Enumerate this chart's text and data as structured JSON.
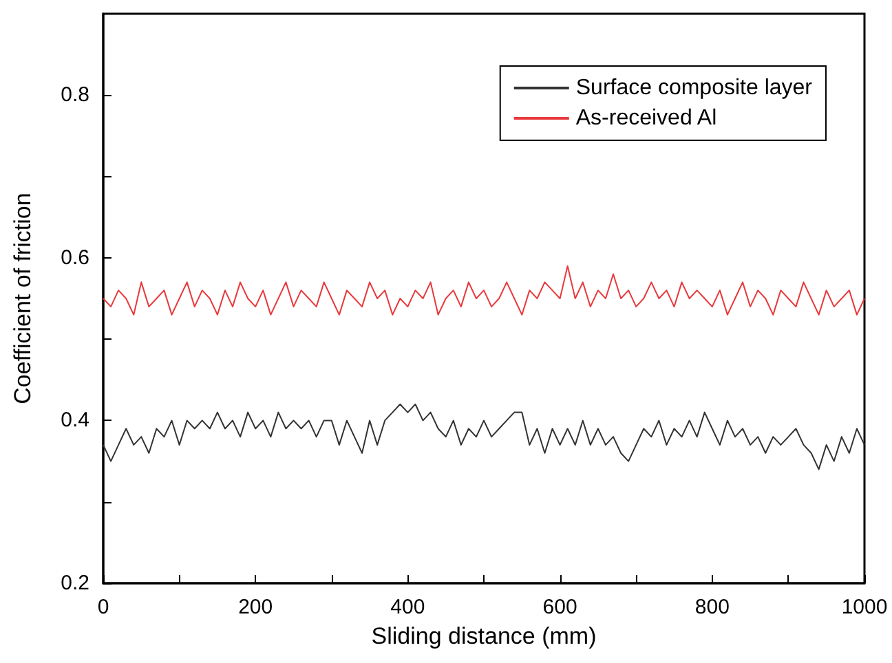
{
  "chart_data": {
    "type": "line",
    "xlabel": "Sliding distance (mm)",
    "ylabel": "Coefficient of friction",
    "x": [
      0,
      10,
      20,
      30,
      40,
      50,
      60,
      70,
      80,
      90,
      100,
      110,
      120,
      130,
      140,
      150,
      160,
      170,
      180,
      190,
      200,
      210,
      220,
      230,
      240,
      250,
      260,
      270,
      280,
      290,
      300,
      310,
      320,
      330,
      340,
      350,
      360,
      370,
      380,
      390,
      400,
      410,
      420,
      430,
      440,
      450,
      460,
      470,
      480,
      490,
      500,
      510,
      520,
      530,
      540,
      550,
      560,
      570,
      580,
      590,
      600,
      610,
      620,
      630,
      640,
      650,
      660,
      670,
      680,
      690,
      700,
      710,
      720,
      730,
      740,
      750,
      760,
      770,
      780,
      790,
      800,
      810,
      820,
      830,
      840,
      850,
      860,
      870,
      880,
      890,
      900,
      910,
      920,
      930,
      940,
      950,
      960,
      970,
      980,
      990,
      1000
    ],
    "series": [
      {
        "name": "Surface composite layer",
        "color": "#333333",
        "values": [
          0.37,
          0.35,
          0.37,
          0.39,
          0.37,
          0.38,
          0.36,
          0.39,
          0.38,
          0.4,
          0.37,
          0.4,
          0.39,
          0.4,
          0.39,
          0.41,
          0.39,
          0.4,
          0.38,
          0.41,
          0.39,
          0.4,
          0.38,
          0.41,
          0.39,
          0.4,
          0.39,
          0.4,
          0.38,
          0.4,
          0.4,
          0.37,
          0.4,
          0.38,
          0.36,
          0.4,
          0.37,
          0.4,
          0.41,
          0.42,
          0.41,
          0.42,
          0.4,
          0.41,
          0.39,
          0.38,
          0.4,
          0.37,
          0.39,
          0.38,
          0.4,
          0.38,
          0.39,
          0.4,
          0.41,
          0.41,
          0.37,
          0.39,
          0.36,
          0.39,
          0.37,
          0.39,
          0.37,
          0.4,
          0.37,
          0.39,
          0.37,
          0.38,
          0.36,
          0.35,
          0.37,
          0.39,
          0.38,
          0.4,
          0.37,
          0.39,
          0.38,
          0.4,
          0.38,
          0.41,
          0.39,
          0.37,
          0.4,
          0.38,
          0.39,
          0.37,
          0.38,
          0.36,
          0.38,
          0.37,
          0.38,
          0.39,
          0.37,
          0.36,
          0.34,
          0.37,
          0.35,
          0.38,
          0.36,
          0.39,
          0.37
        ]
      },
      {
        "name": "As-received Al",
        "color": "#e8393c",
        "values": [
          0.55,
          0.54,
          0.56,
          0.55,
          0.53,
          0.57,
          0.54,
          0.55,
          0.56,
          0.53,
          0.55,
          0.57,
          0.54,
          0.56,
          0.55,
          0.53,
          0.56,
          0.54,
          0.57,
          0.55,
          0.54,
          0.56,
          0.53,
          0.55,
          0.57,
          0.54,
          0.56,
          0.55,
          0.54,
          0.57,
          0.55,
          0.53,
          0.56,
          0.55,
          0.54,
          0.57,
          0.55,
          0.56,
          0.53,
          0.55,
          0.54,
          0.56,
          0.55,
          0.57,
          0.53,
          0.55,
          0.56,
          0.54,
          0.57,
          0.55,
          0.56,
          0.54,
          0.55,
          0.57,
          0.55,
          0.53,
          0.56,
          0.55,
          0.57,
          0.56,
          0.55,
          0.59,
          0.55,
          0.57,
          0.54,
          0.56,
          0.55,
          0.58,
          0.55,
          0.56,
          0.54,
          0.55,
          0.57,
          0.55,
          0.56,
          0.54,
          0.57,
          0.55,
          0.56,
          0.55,
          0.54,
          0.56,
          0.53,
          0.55,
          0.57,
          0.54,
          0.56,
          0.55,
          0.53,
          0.56,
          0.55,
          0.54,
          0.57,
          0.55,
          0.53,
          0.56,
          0.54,
          0.55,
          0.56,
          0.53,
          0.55
        ]
      }
    ],
    "xlim": [
      0,
      1000
    ],
    "xticks": [
      0,
      {
        "value": 100,
        "label": null
      },
      200,
      {
        "value": 300,
        "label": null
      },
      400,
      {
        "value": 500,
        "label": null
      },
      600,
      {
        "value": 700,
        "label": null
      },
      800,
      {
        "value": 900,
        "label": null
      },
      1000
    ],
    "ylim": [
      0.2,
      0.9
    ],
    "yticks": [
      0.2,
      {
        "value": 0.3,
        "label": null
      },
      0.4,
      {
        "value": 0.5,
        "label": null
      },
      0.6,
      {
        "value": 0.7,
        "label": null
      },
      0.8
    ],
    "grid": false,
    "legend": "top right",
    "marker": "none",
    "line_style": "solid"
  }
}
